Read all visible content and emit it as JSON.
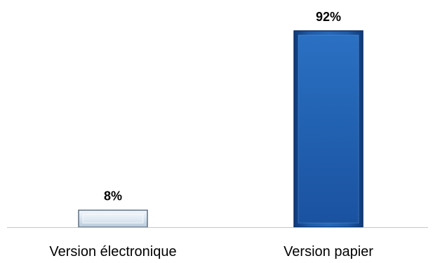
{
  "chart_data": {
    "type": "bar",
    "categories": [
      "Version électronique",
      "Version papier"
    ],
    "values": [
      8,
      92
    ],
    "data_labels": [
      "8%",
      "92%"
    ],
    "ylim": [
      0,
      100
    ],
    "grid": false,
    "legend": "none",
    "colors": {
      "bar_1_fill": "#d7e3ef",
      "bar_1_edge": "#5f6f7f",
      "bar_2_fill": "#1e5ba8",
      "bar_2_edge": "#0d2f66",
      "axis": "#c7c7c7",
      "text": "#000000"
    }
  }
}
